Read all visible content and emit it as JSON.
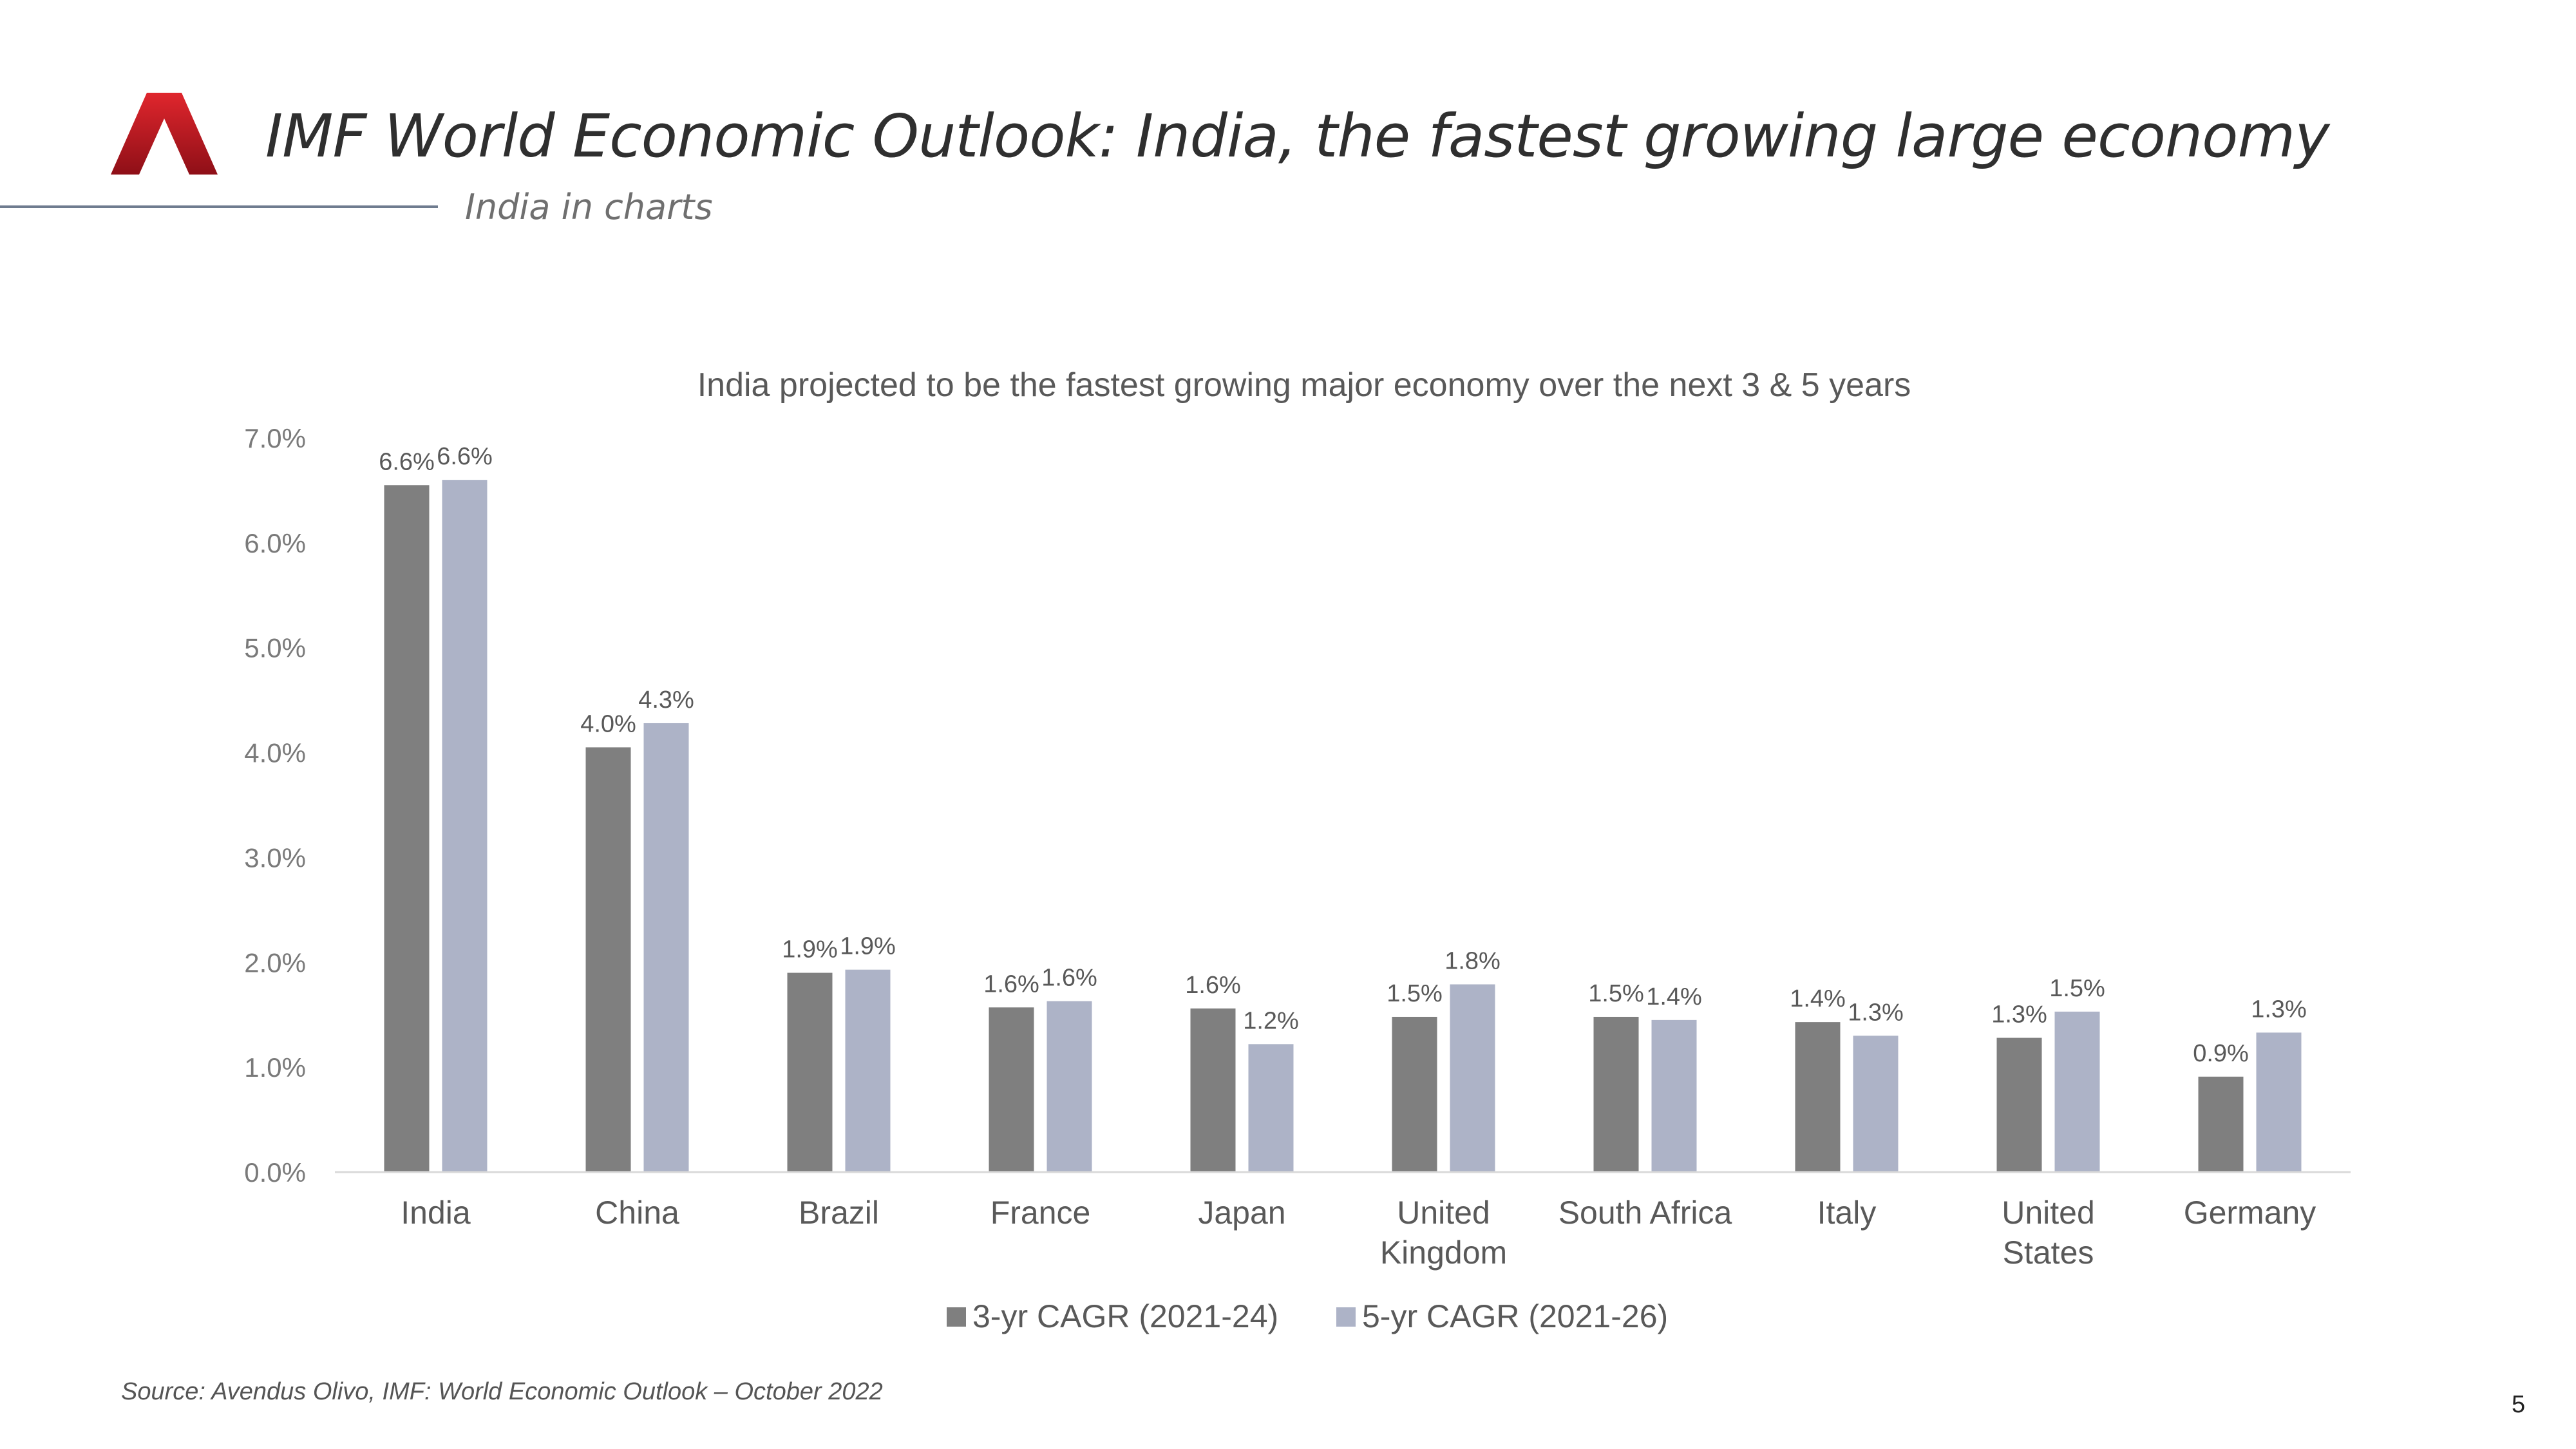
{
  "header": {
    "title": "IMF World Economic Outlook: India, the fastest growing large economy",
    "subtitle": "India in charts"
  },
  "footer": {
    "source": "Source: Avendus Olivo, IMF: World Economic Outlook – October 2022",
    "page_number": "5"
  },
  "colors": {
    "logo": "#c0161f",
    "series_3yr": "#7f7f7f",
    "series_5yr": "#adb3c7"
  },
  "chart_data": {
    "type": "bar",
    "title": "India projected to be the fastest growing major economy over the next 3 & 5 years",
    "xlabel": "",
    "ylabel": "",
    "ylim": [
      0,
      7
    ],
    "yticks": [
      "0.0%",
      "1.0%",
      "2.0%",
      "3.0%",
      "4.0%",
      "5.0%",
      "6.0%",
      "7.0%"
    ],
    "categories": [
      "India",
      "China",
      "Brazil",
      "France",
      "Japan",
      "United Kingdom",
      "South Africa",
      "Italy",
      "United States",
      "Germany"
    ],
    "series": [
      {
        "name": "3-yr CAGR (2021-24)",
        "values": [
          6.55,
          4.05,
          1.9,
          1.57,
          1.56,
          1.48,
          1.48,
          1.43,
          1.28,
          0.91
        ],
        "labels": [
          "6.6%",
          "4.0%",
          "1.9%",
          "1.6%",
          "1.6%",
          "1.5%",
          "1.5%",
          "1.4%",
          "1.3%",
          "0.9%"
        ]
      },
      {
        "name": "5-yr CAGR (2021-26)",
        "values": [
          6.6,
          4.28,
          1.93,
          1.63,
          1.22,
          1.79,
          1.45,
          1.3,
          1.53,
          1.33
        ],
        "labels": [
          "6.6%",
          "4.3%",
          "1.9%",
          "1.6%",
          "1.2%",
          "1.8%",
          "1.4%",
          "1.3%",
          "1.5%",
          "1.3%"
        ]
      }
    ],
    "grid": false,
    "legend": "bottom"
  }
}
